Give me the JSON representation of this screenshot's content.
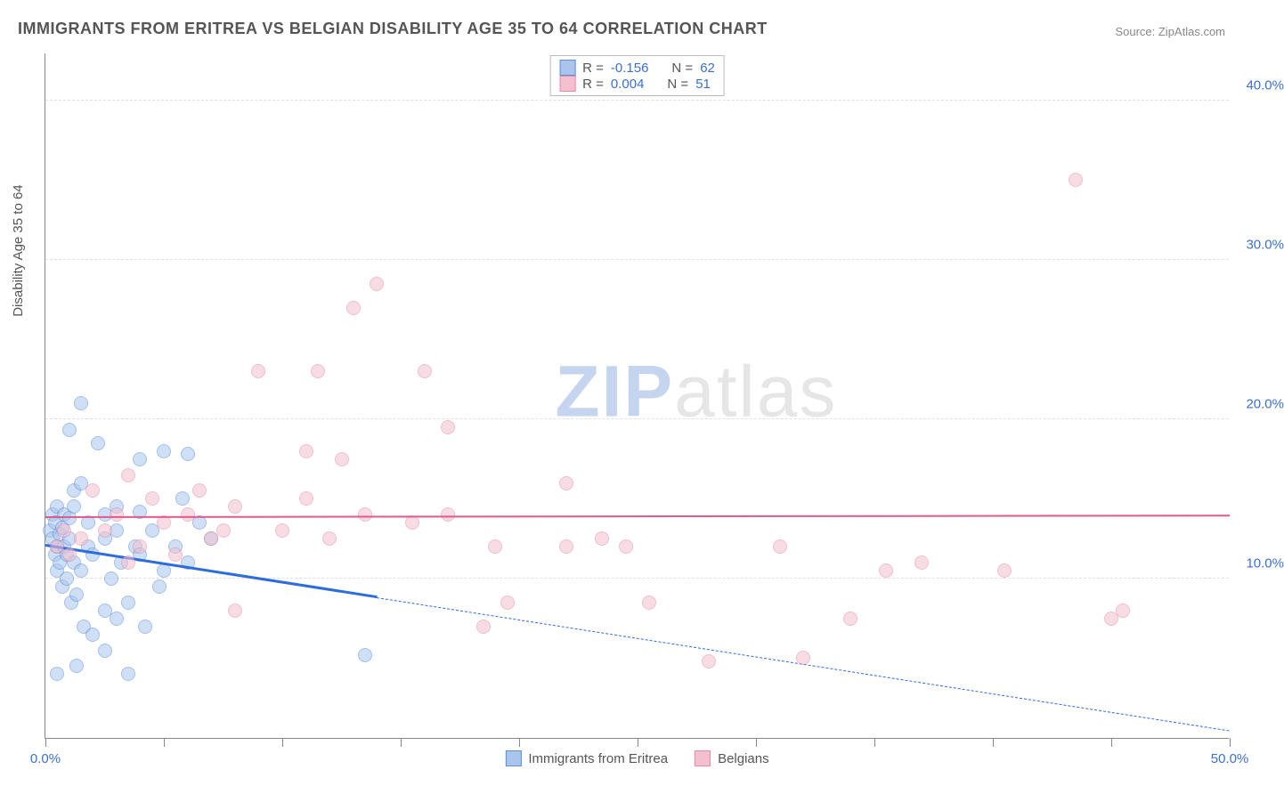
{
  "title": "IMMIGRANTS FROM ERITREA VS BELGIAN DISABILITY AGE 35 TO 64 CORRELATION CHART",
  "source_label": "Source: ZipAtlas.com",
  "ylabel": "Disability Age 35 to 64",
  "watermark_bold": "ZIP",
  "watermark_light": "atlas",
  "chart": {
    "type": "scatter",
    "background_color": "#ffffff",
    "grid_color": "#e0e0e0",
    "axis_color": "#888888",
    "xlim": [
      0,
      50
    ],
    "ylim": [
      0,
      43
    ],
    "xticks": [
      0,
      5,
      10,
      15,
      20,
      25,
      30,
      35,
      40,
      45,
      50
    ],
    "xtick_labels": {
      "0": "0.0%",
      "50": "50.0%"
    },
    "yticks": [
      10,
      20,
      30,
      40
    ],
    "ytick_labels": {
      "10": "10.0%",
      "20": "20.0%",
      "30": "30.0%",
      "40": "40.0%"
    },
    "marker_radius": 8,
    "marker_opacity": 0.55,
    "label_fontsize": 15,
    "label_color": "#3b6fd6",
    "title_fontsize": 18,
    "title_color": "#555555"
  },
  "series": [
    {
      "name": "Immigrants from Eritrea",
      "fill": "#a9c5ee",
      "stroke": "#5a8fd8",
      "r_label": "R = ",
      "r_value": "-0.156",
      "n_label": "N = ",
      "n_value": "62",
      "trend": {
        "x1": 0,
        "y1": 12.0,
        "x2": 50,
        "y2": 0.4,
        "solid_until_x": 14,
        "color": "#2d6cdf",
        "width": 3
      },
      "points": [
        [
          0.2,
          13.0
        ],
        [
          0.3,
          12.5
        ],
        [
          0.3,
          14.0
        ],
        [
          0.4,
          11.5
        ],
        [
          0.4,
          13.5
        ],
        [
          0.5,
          12.0
        ],
        [
          0.5,
          14.5
        ],
        [
          0.5,
          10.5
        ],
        [
          0.6,
          11.0
        ],
        [
          0.6,
          12.8
        ],
        [
          0.7,
          13.2
        ],
        [
          0.7,
          9.5
        ],
        [
          0.8,
          12.0
        ],
        [
          0.8,
          14.0
        ],
        [
          0.9,
          10.0
        ],
        [
          0.9,
          11.5
        ],
        [
          1.0,
          12.5
        ],
        [
          1.0,
          13.8
        ],
        [
          1.1,
          8.5
        ],
        [
          1.2,
          11.0
        ],
        [
          1.2,
          15.5
        ],
        [
          1,
          19.3
        ],
        [
          1.3,
          9.0
        ],
        [
          1.3,
          4.5
        ],
        [
          1.5,
          16.0
        ],
        [
          1.5,
          10.5
        ],
        [
          1.6,
          7.0
        ],
        [
          0.5,
          4.0
        ],
        [
          1.8,
          12.0
        ],
        [
          1.8,
          13.5
        ],
        [
          2.0,
          6.5
        ],
        [
          2.0,
          11.5
        ],
        [
          2.2,
          18.5
        ],
        [
          1.5,
          21.0
        ],
        [
          2.5,
          8.0
        ],
        [
          2.5,
          12.5
        ],
        [
          2.5,
          5.5
        ],
        [
          2.8,
          10.0
        ],
        [
          3.0,
          7.5
        ],
        [
          3.0,
          13.0
        ],
        [
          3.2,
          11.0
        ],
        [
          3.5,
          8.5
        ],
        [
          3.5,
          4.0
        ],
        [
          3.8,
          12.0
        ],
        [
          4.0,
          11.5
        ],
        [
          4.0,
          17.5
        ],
        [
          4.2,
          7.0
        ],
        [
          4.5,
          13.0
        ],
        [
          4.8,
          9.5
        ],
        [
          5.0,
          10.5
        ],
        [
          5.0,
          18.0
        ],
        [
          5.5,
          12.0
        ],
        [
          5.8,
          15.0
        ],
        [
          6,
          17.8
        ],
        [
          6.0,
          11.0
        ],
        [
          6.5,
          13.5
        ],
        [
          7.0,
          12.5
        ],
        [
          2.5,
          14
        ],
        [
          3,
          14.5
        ],
        [
          4,
          14.2
        ],
        [
          1.2,
          14.5
        ],
        [
          13.5,
          5.2
        ]
      ]
    },
    {
      "name": "Belgians",
      "fill": "#f4c0cf",
      "stroke": "#e68aa5",
      "r_label": "R = ",
      "r_value": "0.004",
      "n_label": "N = ",
      "n_value": "51",
      "trend": {
        "x1": 0,
        "y1": 13.8,
        "x2": 50,
        "y2": 13.9,
        "solid_until_x": 50,
        "color": "#e05a8a",
        "width": 2
      },
      "points": [
        [
          0.5,
          12.0
        ],
        [
          0.8,
          13.0
        ],
        [
          1.0,
          11.5
        ],
        [
          1.5,
          12.5
        ],
        [
          2.0,
          15.5
        ],
        [
          2.5,
          13.0
        ],
        [
          3.0,
          14.0
        ],
        [
          3.5,
          11.0
        ],
        [
          4.0,
          12.0
        ],
        [
          4.5,
          15.0
        ],
        [
          5.0,
          13.5
        ],
        [
          5.5,
          11.5
        ],
        [
          6.0,
          14.0
        ],
        [
          6.5,
          15.5
        ],
        [
          7.0,
          12.5
        ],
        [
          7.5,
          13.0
        ],
        [
          8.0,
          14.5
        ],
        [
          8.0,
          8.0
        ],
        [
          9.0,
          23.0
        ],
        [
          10.0,
          13.0
        ],
        [
          11.0,
          15.0
        ],
        [
          11,
          18
        ],
        [
          11.5,
          23.0
        ],
        [
          12.0,
          12.5
        ],
        [
          12.5,
          17.5
        ],
        [
          13.0,
          27.0
        ],
        [
          13.5,
          14.0
        ],
        [
          14.0,
          28.5
        ],
        [
          15.5,
          13.5
        ],
        [
          16.0,
          23.0
        ],
        [
          17.0,
          19.5
        ],
        [
          17,
          14
        ],
        [
          18.5,
          7.0
        ],
        [
          19.0,
          12.0
        ],
        [
          19.5,
          8.5
        ],
        [
          22.0,
          12.0
        ],
        [
          22.0,
          16.0
        ],
        [
          23.5,
          12.5
        ],
        [
          24.5,
          12.0
        ],
        [
          25.5,
          8.5
        ],
        [
          28.0,
          4.8
        ],
        [
          31.0,
          12.0
        ],
        [
          32,
          5
        ],
        [
          34.0,
          7.5
        ],
        [
          35.5,
          10.5
        ],
        [
          37.0,
          11.0
        ],
        [
          40.5,
          10.5
        ],
        [
          43.5,
          35.0
        ],
        [
          45.5,
          8.0
        ],
        [
          45,
          7.5
        ],
        [
          3.5,
          16.5
        ]
      ]
    }
  ],
  "legend_bottom": [
    {
      "label": "Immigrants from Eritrea",
      "fill": "#a9c5ee",
      "stroke": "#5a8fd8"
    },
    {
      "label": "Belgians",
      "fill": "#f4c0cf",
      "stroke": "#e68aa5"
    }
  ]
}
